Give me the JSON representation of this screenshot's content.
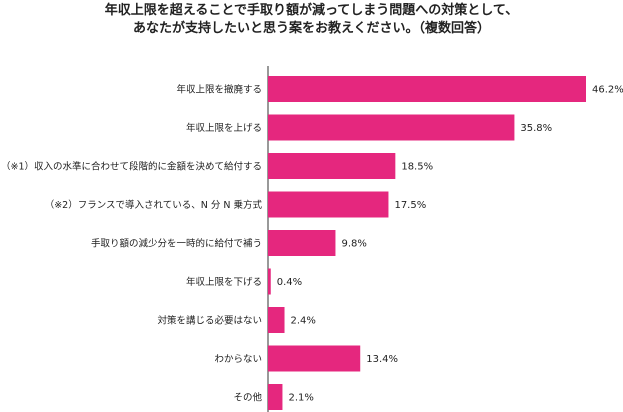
{
  "chart_data": {
    "type": "bar",
    "orientation": "horizontal",
    "title": [
      "年収上限を超えることで手取り額が減ってしまう問題への対策として、",
      "あなたが支持したいと思う案をお教えください。（複数回答）"
    ],
    "categories": [
      "年収上限を撤廃する",
      "年収上限を上げる",
      "（※1）収入の水準に合わせて段階的に金額を決めて給付する",
      "（※2）フランスで導入されている、N 分 N 乗方式",
      "手取り額の減少分を一時的に給付で補う",
      "年収上限を下げる",
      "対策を講じる必要はない",
      "わからない",
      "その他"
    ],
    "values": [
      46.2,
      35.8,
      18.5,
      17.5,
      9.8,
      0.4,
      2.4,
      13.4,
      2.1
    ],
    "value_labels": [
      "46.2%",
      "35.8%",
      "18.5%",
      "17.5%",
      "9.8%",
      "0.4%",
      "2.4%",
      "13.4%",
      "2.1%"
    ],
    "bar_color": "#e5277e",
    "xlim": [
      0,
      50
    ],
    "grid": false,
    "legend": "none"
  }
}
